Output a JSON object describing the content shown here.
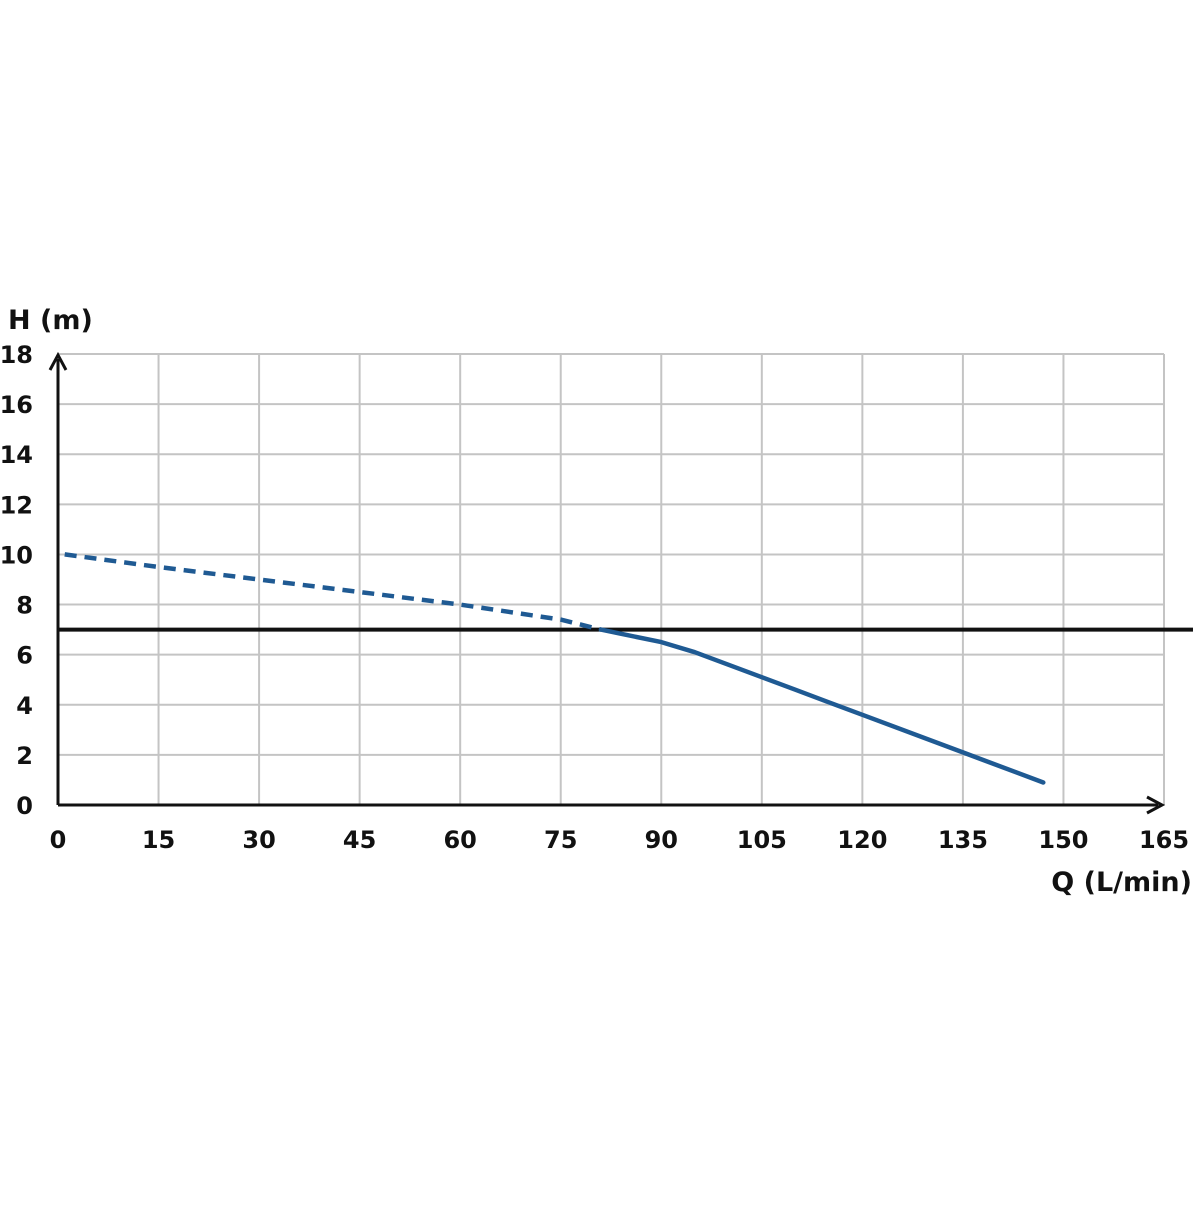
{
  "chart_data": {
    "type": "line",
    "title": "",
    "xlabel": "Q (L/min)",
    "ylabel": "H (m)",
    "xlim": [
      0,
      165
    ],
    "ylim": [
      0,
      18
    ],
    "x_ticks": [
      0,
      15,
      30,
      45,
      60,
      75,
      90,
      105,
      120,
      135,
      150,
      165
    ],
    "y_ticks": [
      0,
      2,
      4,
      6,
      8,
      10,
      12,
      14,
      16,
      18
    ],
    "grid": true,
    "legend": "none",
    "reference_line": {
      "y": 7,
      "color": "#111111"
    },
    "series": [
      {
        "style": "dashed",
        "color": "#1f5a93",
        "x": [
          1,
          15,
          30,
          45,
          60,
          75,
          81
        ],
        "y": [
          10,
          9.5,
          9.0,
          8.5,
          8.0,
          7.4,
          7.0
        ]
      },
      {
        "style": "solid",
        "color": "#1f5a93",
        "x": [
          81,
          90,
          95,
          100,
          105,
          110,
          115,
          120,
          135,
          147
        ],
        "y": [
          7.0,
          6.5,
          6.1,
          5.6,
          5.1,
          4.6,
          4.1,
          3.6,
          2.1,
          0.9
        ]
      }
    ]
  }
}
